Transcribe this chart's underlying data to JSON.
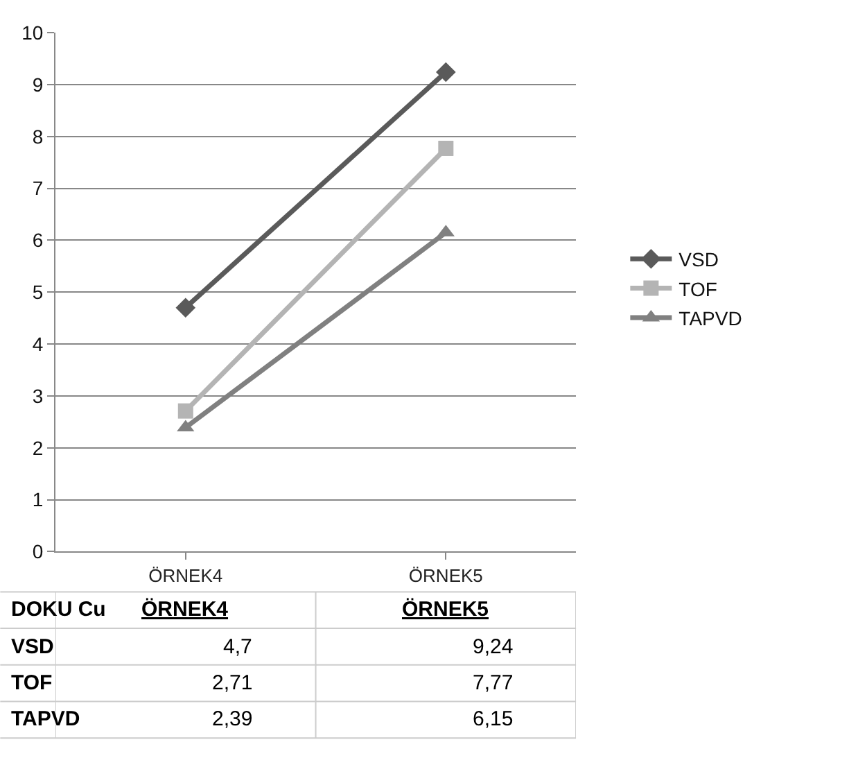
{
  "chart_data": {
    "type": "line",
    "categories": [
      "ÖRNEK4",
      "ÖRNEK5"
    ],
    "series": [
      {
        "name": "VSD",
        "color": "#5a5a5a",
        "marker": "diamond",
        "values": [
          4.7,
          9.24
        ],
        "value_labels": [
          "4,7",
          "9,24"
        ]
      },
      {
        "name": "TOF",
        "color": "#b4b4b4",
        "marker": "square",
        "values": [
          2.71,
          7.77
        ],
        "value_labels": [
          "2,71",
          "7,77"
        ]
      },
      {
        "name": "TAPVD",
        "color": "#808080",
        "marker": "triangle",
        "values": [
          2.39,
          6.15
        ],
        "value_labels": [
          "2,39",
          "6,15"
        ]
      }
    ],
    "annotations": [
      "DOKU Cu"
    ],
    "ylim": [
      0,
      10
    ],
    "yticks": [
      0,
      1,
      2,
      3,
      4,
      5,
      6,
      7,
      8,
      9,
      10
    ],
    "grid": "y",
    "legend": "right",
    "line_style": "solid"
  }
}
